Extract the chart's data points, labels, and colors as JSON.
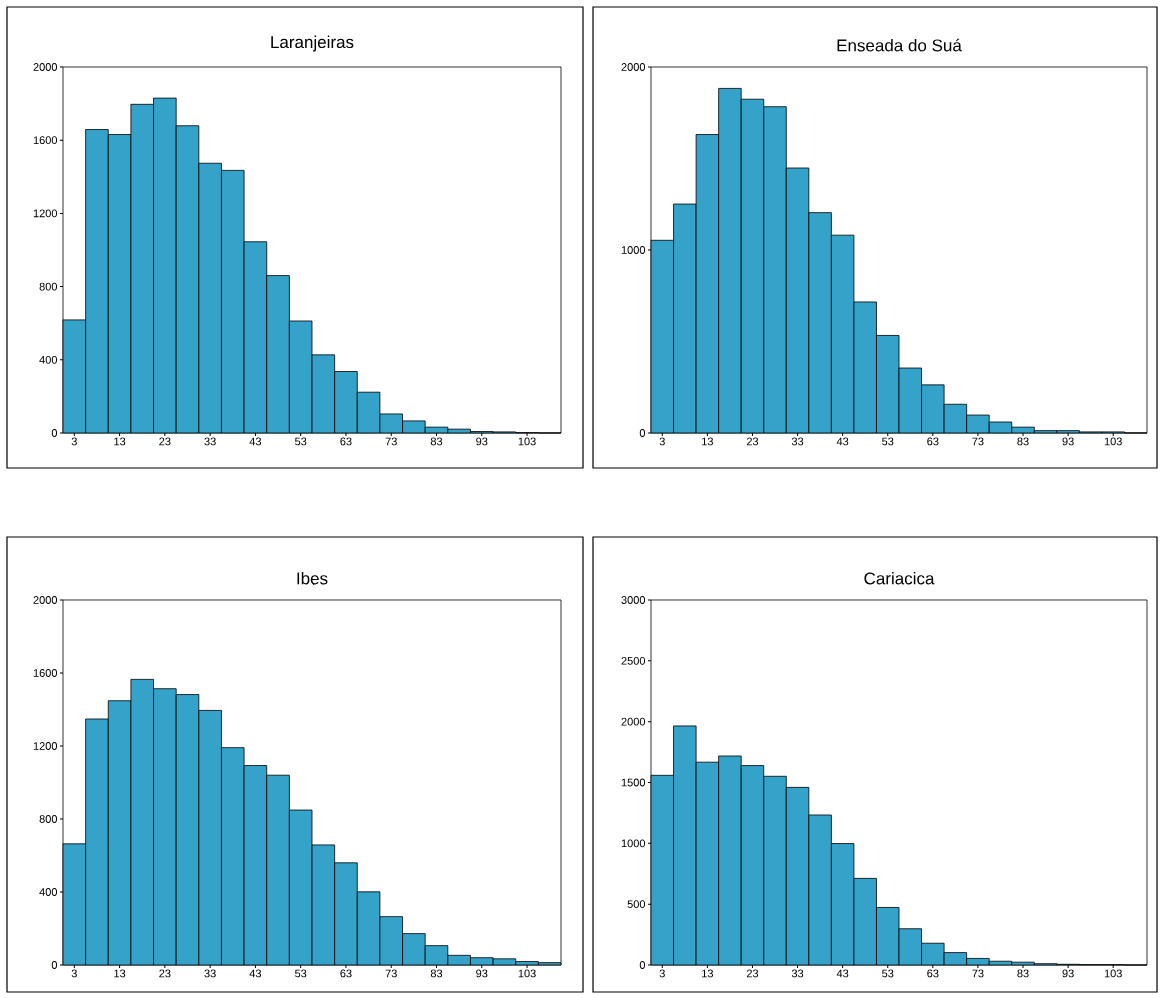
{
  "chart_data": [
    {
      "type": "histogram",
      "title": "Laranjeiras",
      "color": "#35a2c9",
      "bins": [
        0.5,
        5.5,
        10.5,
        15.5,
        20.5,
        25.5,
        30.5,
        35.5,
        40.5,
        45.5,
        50.5,
        55.5,
        60.5,
        65.5,
        70.5,
        75.5,
        80.5,
        85.5,
        90.5,
        95.5,
        100.5,
        105.5,
        110.5
      ],
      "values": [
        618,
        1658,
        1631,
        1796,
        1830,
        1679,
        1474,
        1435,
        1045,
        860,
        612,
        427,
        336,
        223,
        104,
        66,
        32,
        21,
        8,
        6,
        2,
        0
      ],
      "xlim": [
        0.5,
        110.5
      ],
      "ylim": [
        0,
        2000
      ],
      "xticks": [
        3,
        13,
        23,
        33,
        43,
        53,
        63,
        73,
        83,
        93,
        103
      ],
      "yticks": [
        0,
        400,
        800,
        1200,
        1600,
        2000
      ]
    },
    {
      "type": "histogram",
      "title": "Enseada do Suá",
      "color": "#35a2c9",
      "bins": [
        0.5,
        5.5,
        10.5,
        15.5,
        20.5,
        25.5,
        30.5,
        35.5,
        40.5,
        45.5,
        50.5,
        55.5,
        60.5,
        65.5,
        70.5,
        75.5,
        80.5,
        85.5,
        90.5,
        95.5,
        100.5,
        105.5,
        110.5
      ],
      "values": [
        1053,
        1251,
        1631,
        1883,
        1824,
        1783,
        1448,
        1204,
        1081,
        716,
        533,
        355,
        263,
        157,
        98,
        60,
        32,
        13,
        13,
        6,
        6,
        0
      ],
      "xlim": [
        0.5,
        110.5
      ],
      "ylim": [
        0,
        2000
      ],
      "xticks": [
        3,
        13,
        23,
        33,
        43,
        53,
        63,
        73,
        83,
        93,
        103
      ],
      "yticks": [
        0,
        1000,
        2000
      ]
    },
    {
      "type": "histogram",
      "title": "Ibes",
      "color": "#35a2c9",
      "bins": [
        0.5,
        5.5,
        10.5,
        15.5,
        20.5,
        25.5,
        30.5,
        35.5,
        40.5,
        45.5,
        50.5,
        55.5,
        60.5,
        65.5,
        70.5,
        75.5,
        80.5,
        85.5,
        90.5,
        95.5,
        100.5,
        105.5,
        110.5
      ],
      "values": [
        664,
        1348,
        1448,
        1565,
        1514,
        1482,
        1395,
        1191,
        1093,
        1040,
        849,
        658,
        560,
        401,
        265,
        172,
        106,
        53,
        40,
        34,
        19,
        13
      ],
      "xlim": [
        0.5,
        110.5
      ],
      "ylim": [
        0,
        2000
      ],
      "xticks": [
        3,
        13,
        23,
        33,
        43,
        53,
        63,
        73,
        83,
        93,
        103
      ],
      "yticks": [
        0,
        400,
        800,
        1200,
        1600,
        2000
      ]
    },
    {
      "type": "histogram",
      "title": "Cariacica",
      "color": "#35a2c9",
      "bins": [
        0.5,
        5.5,
        10.5,
        15.5,
        20.5,
        25.5,
        30.5,
        35.5,
        40.5,
        45.5,
        50.5,
        55.5,
        60.5,
        65.5,
        70.5,
        75.5,
        80.5,
        85.5,
        90.5,
        95.5,
        100.5,
        105.5,
        110.5
      ],
      "values": [
        1559,
        1965,
        1667,
        1718,
        1639,
        1551,
        1460,
        1233,
        998,
        712,
        473,
        298,
        179,
        102,
        54,
        31,
        23,
        11,
        6,
        3,
        3,
        0
      ],
      "xlim": [
        0.5,
        110.5
      ],
      "ylim": [
        0,
        3000
      ],
      "xticks": [
        3,
        13,
        23,
        33,
        43,
        53,
        63,
        73,
        83,
        93,
        103
      ],
      "yticks": [
        0,
        500,
        1000,
        1500,
        2000,
        2500,
        3000
      ]
    }
  ]
}
